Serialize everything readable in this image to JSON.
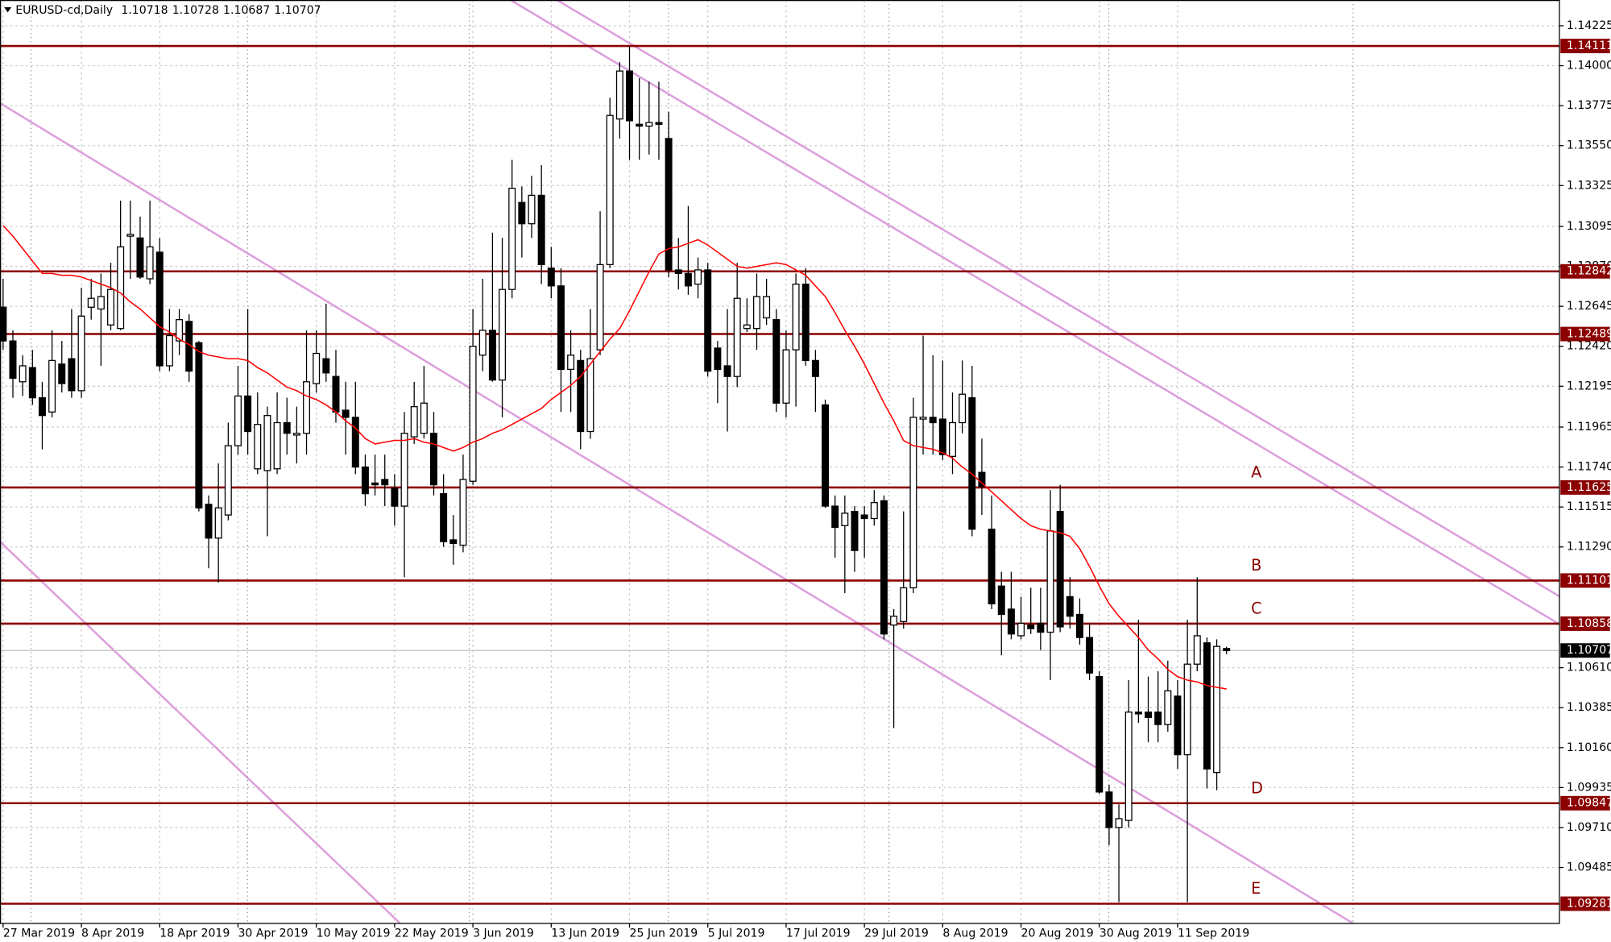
{
  "chart_data": {
    "type": "candlestick",
    "title": "EURUSD-cd,Daily",
    "categories": [
      "27 Mar 2019",
      null,
      null,
      null,
      null,
      null,
      null,
      null,
      "8 Apr 2019",
      null,
      null,
      null,
      null,
      null,
      null,
      null,
      "18 Apr 2019",
      null,
      null,
      null,
      null,
      null,
      null,
      null,
      "30 Apr 2019",
      null,
      null,
      null,
      null,
      null,
      null,
      null,
      "10 May 2019",
      null,
      null,
      null,
      null,
      null,
      null,
      null,
      "22 May 2019",
      null,
      null,
      null,
      null,
      null,
      null,
      null,
      "3 Jun 2019",
      null,
      null,
      null,
      null,
      null,
      null,
      null,
      "13 Jun 2019",
      null,
      null,
      null,
      null,
      null,
      null,
      null,
      "25 Jun 2019",
      null,
      null,
      null,
      null,
      null,
      null,
      null,
      "5 Jul 2019",
      null,
      null,
      null,
      null,
      null,
      null,
      null,
      "17 Jul 2019",
      null,
      null,
      null,
      null,
      null,
      null,
      null,
      "29 Jul 2019",
      null,
      null,
      null,
      null,
      null,
      null,
      null,
      "8 Aug 2019",
      null,
      null,
      null,
      null,
      null,
      null,
      null,
      "20 Aug 2019",
      null,
      null,
      null,
      null,
      null,
      null,
      null,
      "30 Aug 2019",
      null,
      null,
      null,
      null,
      null,
      null,
      null,
      "11 Sep 2019",
      null,
      null,
      null,
      null,
      null
    ],
    "open": [
      1.1264,
      1.1245,
      1.1222,
      1.123,
      1.1213,
      1.1205,
      1.1232,
      1.1235,
      1.1217,
      1.1264,
      1.1263,
      1.1254,
      1.1252,
      1.1304,
      1.1303,
      1.128,
      1.1295,
      1.1231,
      1.1245,
      1.1256,
      1.1244,
      1.1153,
      1.1134,
      1.1147,
      1.1186,
      1.1214,
      1.1173,
      1.1172,
      1.1173,
      1.1199,
      1.1192,
      1.1193,
      1.1221,
      1.1235,
      1.1225,
      1.1206,
      1.1202,
      1.1174,
      1.1165,
      1.1167,
      1.1162,
      1.1152,
      1.1191,
      1.1193,
      1.1193,
      1.1159,
      1.1133,
      1.113,
      1.1166,
      1.1237,
      1.1251,
      1.1223,
      1.1274,
      1.1323,
      1.1311,
      1.1327,
      1.1286,
      1.1276,
      1.1229,
      1.1234,
      1.1194,
      1.124,
      1.1288,
      1.137,
      1.1397,
      1.1367,
      1.1366,
      1.1368,
      1.1359,
      1.1285,
      1.1283,
      1.1277,
      1.1285,
      1.1241,
      1.1231,
      1.1225,
      1.1252,
      1.1252,
      1.1258,
      1.1257,
      1.121,
      1.124,
      1.1277,
      1.1234,
      1.1209,
      1.1152,
      1.1141,
      1.1149,
      1.1147,
      1.1145,
      1.1155,
      1.1085,
      1.1087,
      1.1106,
      1.1201,
      1.1202,
      1.1201,
      1.118,
      1.1199,
      1.1213,
      1.1171,
      1.1139,
      1.1107,
      1.1094,
      1.1079,
      1.1085,
      1.1086,
      1.1081,
      1.1149,
      1.1101,
      1.1091,
      1.1078,
      1.1056,
      1.0991,
      1.0971,
      1.0975,
      1.1036,
      1.1036,
      1.1036,
      1.1029,
      1.1045,
      1.1012,
      1.1063,
      1.1075,
      1.1002,
      1.10718
    ],
    "high": [
      1.128,
      1.1251,
      1.1237,
      1.124,
      1.1222,
      1.1251,
      1.1245,
      1.1263,
      1.1275,
      1.128,
      1.1283,
      1.1289,
      1.1324,
      1.1324,
      1.1315,
      1.1324,
      1.1303,
      1.1263,
      1.1263,
      1.126,
      1.1245,
      1.1158,
      1.1176,
      1.1199,
      1.1231,
      1.1263,
      1.1216,
      1.1208,
      1.1216,
      1.1213,
      1.1208,
      1.1251,
      1.1251,
      1.1266,
      1.124,
      1.1222,
      1.1222,
      1.1181,
      1.1181,
      1.1181,
      1.117,
      1.1205,
      1.1222,
      1.1231,
      1.1205,
      1.117,
      1.1147,
      1.1181,
      1.1263,
      1.128,
      1.1306,
      1.1303,
      1.1347,
      1.1332,
      1.1338,
      1.1344,
      1.1298,
      1.1286,
      1.1251,
      1.124,
      1.1263,
      1.1318,
      1.1382,
      1.1402,
      1.1411,
      1.1393,
      1.1391,
      1.1391,
      1.1374,
      1.1303,
      1.1321,
      1.1292,
      1.1289,
      1.1245,
      1.1263,
      1.1289,
      1.1269,
      1.1283,
      1.128,
      1.1263,
      1.1251,
      1.1283,
      1.1286,
      1.124,
      1.1212,
      1.1158,
      1.1158,
      1.1152,
      1.1152,
      1.1161,
      1.1158,
      1.1094,
      1.1149,
      1.1213,
      1.1248,
      1.1237,
      1.1234,
      1.1216,
      1.1234,
      1.1231,
      1.119,
      1.1158,
      1.1115,
      1.1115,
      1.1101,
      1.1106,
      1.1106,
      1.1161,
      1.1164,
      1.1112,
      1.11,
      1.1086,
      1.1059,
      1.0995,
      1.0984,
      1.1054,
      1.1088,
      1.1056,
      1.1059,
      1.1065,
      1.1054,
      1.1088,
      1.1112,
      1.1078,
      1.1077,
      1.10728
    ],
    "low": [
      1.124,
      1.1213,
      1.1214,
      1.1209,
      1.1184,
      1.1202,
      1.1216,
      1.1213,
      1.1213,
      1.1257,
      1.1231,
      1.1251,
      1.1251,
      1.128,
      1.128,
      1.1277,
      1.1228,
      1.1228,
      1.1237,
      1.1222,
      1.1149,
      1.1117,
      1.1109,
      1.1144,
      1.1181,
      1.1181,
      1.117,
      1.1135,
      1.117,
      1.1181,
      1.1176,
      1.1181,
      1.1216,
      1.1222,
      1.1199,
      1.1181,
      1.117,
      1.1152,
      1.1158,
      1.1152,
      1.1141,
      1.1112,
      1.1187,
      1.119,
      1.1158,
      1.1129,
      1.1119,
      1.1126,
      1.1164,
      1.1228,
      1.1222,
      1.1202,
      1.1269,
      1.1292,
      1.1303,
      1.1277,
      1.1269,
      1.1205,
      1.1205,
      1.1184,
      1.119,
      1.1237,
      1.1286,
      1.1359,
      1.1347,
      1.1347,
      1.135,
      1.1347,
      1.1281,
      1.1274,
      1.1271,
      1.1269,
      1.1225,
      1.121,
      1.1194,
      1.1219,
      1.125,
      1.124,
      1.1254,
      1.1205,
      1.1202,
      1.1208,
      1.1231,
      1.1205,
      1.1151,
      1.1123,
      1.1103,
      1.1115,
      1.1123,
      1.1141,
      1.1077,
      1.1027,
      1.1083,
      1.1103,
      1.1181,
      1.1181,
      1.1178,
      1.117,
      1.1193,
      1.1135,
      1.1147,
      1.1094,
      1.1068,
      1.1077,
      1.1077,
      1.108,
      1.1071,
      1.1054,
      1.1081,
      1.1083,
      1.1074,
      1.1054,
      1.099,
      1.0961,
      1.0929,
      1.0971,
      1.103,
      1.1019,
      1.1019,
      1.1025,
      1.1004,
      1.0929,
      1.1059,
      1.0993,
      1.0992,
      1.10687
    ],
    "close": [
      1.1245,
      1.1224,
      1.1231,
      1.1213,
      1.1203,
      1.1234,
      1.1221,
      1.1217,
      1.1259,
      1.1269,
      1.127,
      1.1274,
      1.1298,
      1.1305,
      1.1281,
      1.1298,
      1.1231,
      1.1248,
      1.1257,
      1.1228,
      1.1151,
      1.1134,
      1.1151,
      1.1186,
      1.1214,
      1.1194,
      1.1198,
      1.1203,
      1.1199,
      1.1193,
      1.1193,
      1.1222,
      1.1238,
      1.1227,
      1.1205,
      1.1202,
      1.1174,
      1.1159,
      1.1164,
      1.1164,
      1.1152,
      1.1193,
      1.1208,
      1.121,
      1.1164,
      1.1132,
      1.1131,
      1.1167,
      1.1242,
      1.1251,
      1.1223,
      1.1274,
      1.1331,
      1.1311,
      1.1327,
      1.1288,
      1.1276,
      1.1229,
      1.1237,
      1.1194,
      1.1235,
      1.1288,
      1.1372,
      1.1397,
      1.1369,
      1.1366,
      1.1368,
      1.1367,
      1.1285,
      1.1283,
      1.1276,
      1.1285,
      1.1228,
      1.1229,
      1.1225,
      1.1269,
      1.1254,
      1.127,
      1.127,
      1.121,
      1.124,
      1.1277,
      1.1234,
      1.1225,
      1.1152,
      1.114,
      1.1148,
      1.1127,
      1.1145,
      1.1154,
      1.108,
      1.109,
      1.1106,
      1.1202,
      1.1202,
      1.1199,
      1.1181,
      1.1199,
      1.1215,
      1.1139,
      1.1163,
      1.1097,
      1.1091,
      1.108,
      1.1086,
      1.1083,
      1.1081,
      1.1138,
      1.1084,
      1.109,
      1.1078,
      1.1058,
      1.0991,
      1.0971,
      1.0976,
      1.1036,
      1.1035,
      1.1033,
      1.1029,
      1.1048,
      1.1012,
      1.1063,
      1.1079,
      1.1004,
      1.1073,
      1.10707
    ],
    "up_color": "#ffffff",
    "down_color": "#000000",
    "ma": {
      "color": "#ff0000",
      "values": [
        1.131,
        1.1304,
        1.1297,
        1.129,
        1.1283,
        1.1283,
        1.1282,
        1.1282,
        1.1281,
        1.1279,
        1.1277,
        1.1275,
        1.1272,
        1.1267,
        1.1263,
        1.1258,
        1.1253,
        1.125,
        1.1246,
        1.1243,
        1.1239,
        1.1237,
        1.1236,
        1.1235,
        1.1235,
        1.1234,
        1.123,
        1.1227,
        1.1223,
        1.1219,
        1.1217,
        1.1214,
        1.1212,
        1.1209,
        1.1205,
        1.12,
        1.1196,
        1.119,
        1.1187,
        1.1188,
        1.1189,
        1.1189,
        1.119,
        1.1188,
        1.1187,
        1.1185,
        1.1183,
        1.1185,
        1.1188,
        1.119,
        1.1193,
        1.1195,
        1.1198,
        1.1201,
        1.1204,
        1.1207,
        1.1212,
        1.1216,
        1.122,
        1.1225,
        1.1232,
        1.1239,
        1.1246,
        1.1252,
        1.1262,
        1.1273,
        1.1284,
        1.1294,
        1.1297,
        1.1298,
        1.13,
        1.1302,
        1.1299,
        1.1295,
        1.1291,
        1.1287,
        1.1286,
        1.1287,
        1.1288,
        1.1289,
        1.1288,
        1.1285,
        1.1282,
        1.1276,
        1.127,
        1.1261,
        1.1251,
        1.1242,
        1.1232,
        1.1221,
        1.121,
        1.12,
        1.1189,
        1.1186,
        1.1185,
        1.1184,
        1.1182,
        1.1179,
        1.1174,
        1.117,
        1.1165,
        1.116,
        1.1155,
        1.115,
        1.1145,
        1.1141,
        1.1139,
        1.1138,
        1.1137,
        1.1135,
        1.1128,
        1.1118,
        1.1107,
        1.1097,
        1.109,
        1.1084,
        1.1078,
        1.1071,
        1.1066,
        1.106,
        1.1056,
        1.1054,
        1.1053,
        1.1051,
        1.105,
        1.1049
      ]
    },
    "levels": [
      {
        "value": 1.14111
      },
      {
        "value": 1.12842
      },
      {
        "value": 1.12489
      },
      {
        "value": 1.11625,
        "name": "A"
      },
      {
        "value": 1.11101,
        "name": "B"
      },
      {
        "value": 1.10858,
        "name": "C"
      },
      {
        "value": 1.09847,
        "name": "D"
      },
      {
        "value": 1.09281,
        "name": "E"
      }
    ],
    "level_color": "#8b0000",
    "ylim": [
      1.0917,
      1.1437
    ],
    "yticks": [
      1.14225,
      {
        "value": 1.14,
        "label": "1.14000"
      },
      1.13775,
      {
        "value": 1.1355,
        "label": "1.13550"
      },
      1.13325,
      1.13095,
      {
        "value": 1.1287,
        "label": "1.12870"
      },
      1.12645,
      {
        "value": 1.1242,
        "label": "1.12420"
      },
      1.12195,
      1.11965,
      {
        "value": 1.1174,
        "label": "1.11740"
      },
      1.11515,
      {
        "value": 1.1129,
        "label": "1.11290"
      },
      {
        "value": 1.1061,
        "label": "1.10610"
      },
      1.10385,
      {
        "value": 1.1016,
        "label": "1.10160"
      },
      1.09935,
      {
        "value": 1.0971,
        "label": "1.09710"
      },
      1.09485
    ],
    "grid": true
  }
}
